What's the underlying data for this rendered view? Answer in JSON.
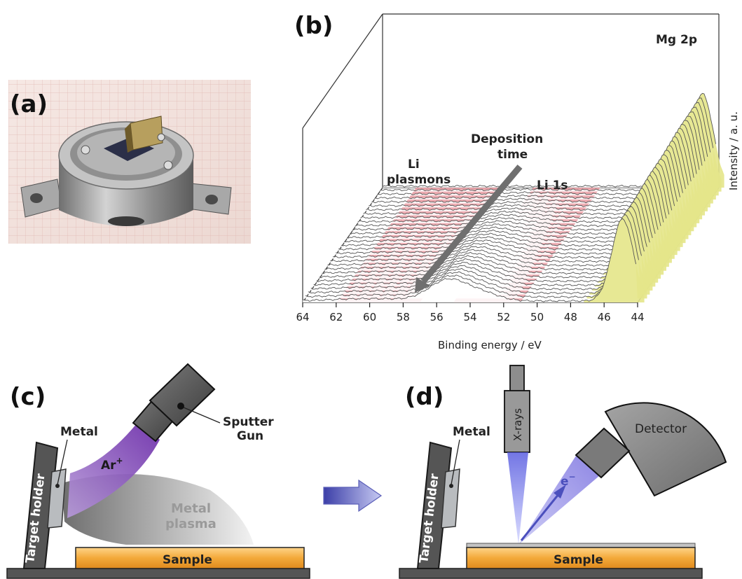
{
  "panels": {
    "a": {
      "label": "(a)"
    },
    "b": {
      "label": "(b)"
    },
    "c": {
      "label": "(c)"
    },
    "d": {
      "label": "(d)"
    }
  },
  "chart_data": {
    "type": "line",
    "style": "waterfall-3d",
    "x": [
      64,
      62,
      60,
      58,
      56,
      54,
      52,
      50,
      48,
      46,
      44
    ],
    "xlabel": "Binding energy / eV",
    "ylabel": "Intensity / a. u.",
    "xlim": [
      64,
      44
    ],
    "x_reversed": true,
    "tick_labels": [
      "64",
      "62",
      "60",
      "58",
      "56",
      "54",
      "52",
      "50",
      "48",
      "46",
      "44"
    ],
    "peaks": [
      {
        "label": "Mg 2p",
        "center": 49.5
      },
      {
        "label": "Li 1s",
        "center": 55.5
      }
    ],
    "highlighted_regions": [
      {
        "label": "Li plasmons",
        "range": [
          62,
          57
        ],
        "color": "#e89098"
      },
      {
        "label": "Li 1s",
        "range": [
          55,
          51
        ],
        "color": "#e89098"
      }
    ],
    "annotations": [
      {
        "text_line1": "Li",
        "text_line2": "plasmons"
      },
      {
        "text_line1": "Deposition",
        "text_line2": "time"
      },
      {
        "text": "Li 1s"
      },
      {
        "text": "Mg 2p"
      }
    ],
    "colors": {
      "mg_peak": "#e4e68a",
      "highlight": "#e89098",
      "trace": "#555555"
    }
  },
  "diagram_c": {
    "target_holder": "Target holder",
    "metal": "Metal",
    "sputter_gun_line1": "Sputter",
    "sputter_gun_line2": "Gun",
    "ion": "Ar",
    "ion_charge": "+",
    "plasma_line1": "Metal",
    "plasma_line2": "plasma",
    "sample": "Sample"
  },
  "diagram_d": {
    "target_holder": "Target holder",
    "metal": "Metal",
    "xrays": "X-rays",
    "detector": "Detector",
    "electron": "e",
    "electron_charge": "−",
    "sample": "Sample"
  },
  "colors": {
    "sample_fill": "#f5b848",
    "holder_fill": "#555555",
    "metal_fill": "#b9bcbf",
    "ion_beam": "#8a4fc2",
    "xray_beam": "#8b8fe6",
    "arrow": "#9ea3dc"
  }
}
